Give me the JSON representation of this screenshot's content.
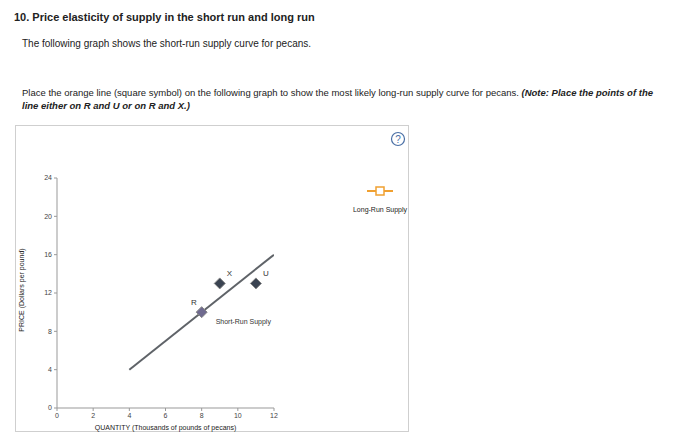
{
  "page": {
    "heading": "10. Price elasticity of supply in the short run and long run",
    "intro": "The following graph shows the short-run supply curve for pecans.",
    "instruction": "Place the orange line (square symbol) on the following graph to show the most likely long-run supply curve for pecans.",
    "note": "(Note: Place the points of the line either on R and U or on R and X.)",
    "help_icon": "?"
  },
  "chart_data": {
    "type": "line",
    "x_label": "QUANTITY (Thousands of pounds of pecans)",
    "y_label": "PRICE (Dollars per pound)",
    "xlim": [
      0,
      12
    ],
    "xticks": [
      0,
      2,
      4,
      6,
      8,
      10,
      12
    ],
    "ylim": [
      0,
      24
    ],
    "yticks": [
      0,
      4,
      8,
      12,
      16,
      20,
      24
    ],
    "grid": false,
    "legend": "right",
    "series": [
      {
        "name": "Short-Run Supply",
        "color": "#5f6368",
        "x": [
          4,
          12
        ],
        "values": [
          4,
          16
        ]
      },
      {
        "name": "Long-Run Supply",
        "color": "#f0a030",
        "marker": "square",
        "x": [],
        "values": []
      }
    ],
    "points": {
      "labels": [
        "R",
        "X",
        "U"
      ],
      "x": [
        8,
        9,
        11
      ],
      "values": [
        10,
        13,
        13
      ],
      "colors": [
        "#6f6a8f",
        "#3b4452",
        "#3b4452"
      ],
      "marker": "diamond"
    },
    "annotations": [
      {
        "text": "Short-Run Supply",
        "x": 10.3,
        "y": 9
      }
    ]
  }
}
